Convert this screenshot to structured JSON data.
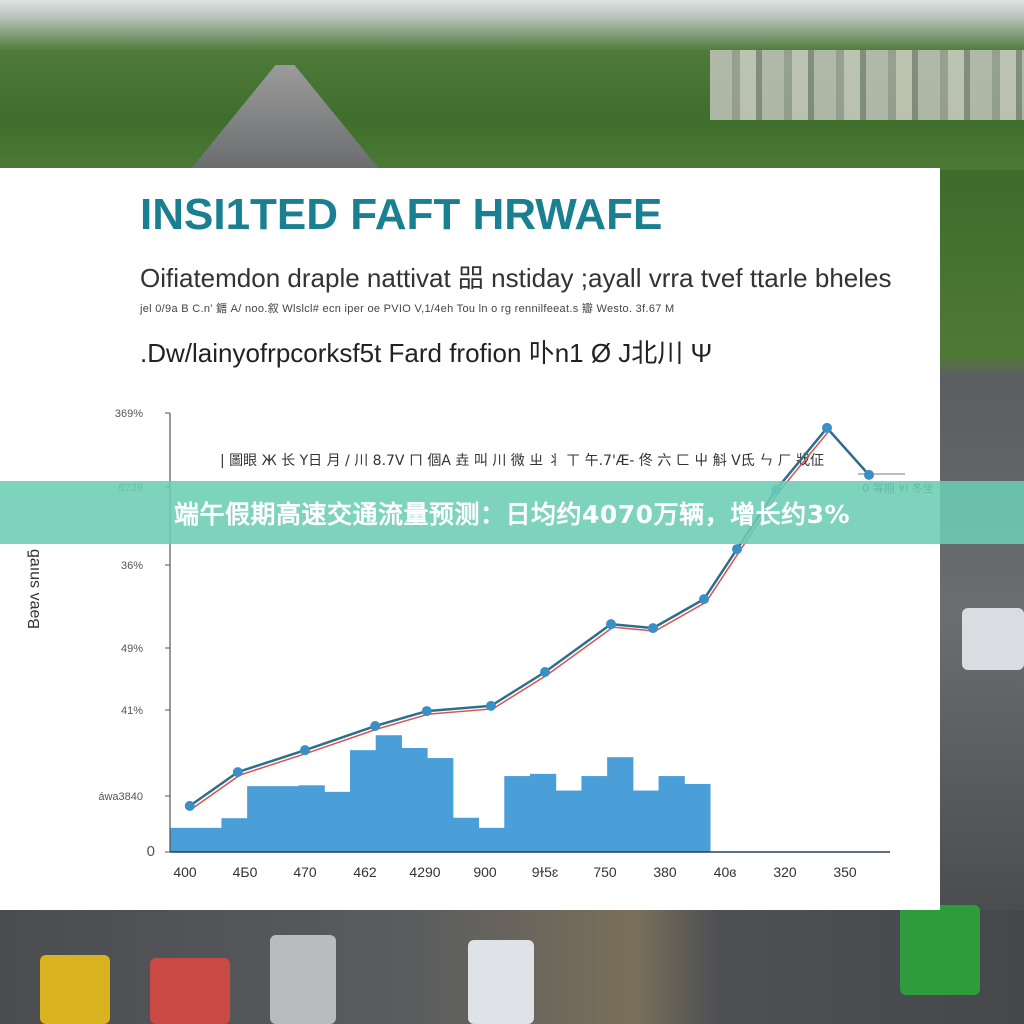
{
  "caption": "端午假期高速交通流量预测：日均约4070万辆，增长约3%",
  "colors": {
    "title": "#1a7f91",
    "banner": "#6ccdb4",
    "bars": "#4a9fd8",
    "line": "#2b6f8f",
    "line_red": "#d9534f"
  },
  "chart_data": {
    "type": "line",
    "title": "INSI1TED FAFT HRWAFE",
    "subtitle_lines": [
      "Oifiatemdon draple nattivat 㗊 nstiday ;ayall vrra tvef ttarle bheles",
      "jel 0/9a B C.n' 䥄 A/ noo.叙 Wlslcl# ecn iper oe PVIO V,1/4eh Tou ln o rg rennilfeeat.s 瓣 Westo. 3f.67 M",
      ".Dw/lainyofrpcorksf5t Fard frofion 卟n1 Ø J北川 Ψ"
    ],
    "legend_text": "| 圖眼 Ж 长 Y日 月 / 川 8.7V ㄇ 個A 垚 叫 川 微 ㄓ 丬 ㄒ 午.7'Æ- 佟 六 ㄈ 屮 斛 V氐 ㄣ ㄏ 戕佂",
    "right_label": "0 等期 ¥l 冬坐",
    "ylabel": "Bǝɐʌ snıɐƃ",
    "yticks": [
      "369%",
      "6?39",
      "36%",
      "49%",
      "41%",
      "áwa3840",
      "0"
    ],
    "xticks": [
      "400",
      "4Б0",
      "470",
      "462",
      "4290",
      "900",
      "9ɫ5ɛ",
      "750",
      "380",
      "40ɞ",
      "320",
      "350"
    ],
    "ylim": [
      0,
      100
    ],
    "grid": false,
    "line": {
      "x": [
        0.08,
        0.88,
        2.0,
        3.17,
        4.03,
        5.1,
        6.0,
        7.1,
        7.8,
        8.65,
        9.2,
        9.85,
        10.7,
        11.4
      ],
      "y": [
        10.5,
        18.2,
        23.2,
        28.7,
        32.1,
        33.3,
        41,
        51.9,
        51,
        57.6,
        69,
        82.5,
        96.6,
        85.9
      ]
    },
    "bars": {
      "values": [
        5.5,
        5.5,
        7.7,
        15,
        15,
        15.2,
        13.7,
        23.2,
        26.6,
        23.7,
        21.4,
        7.8,
        5.5,
        17.3,
        17.8,
        14,
        17.3,
        21.6,
        14,
        17.3,
        15.5
      ]
    }
  }
}
